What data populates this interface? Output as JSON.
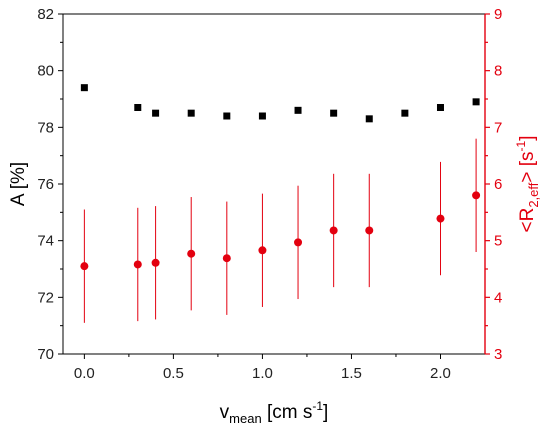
{
  "chart_data": {
    "type": "scatter",
    "title": "",
    "xlabel": {
      "main": "v",
      "sub": "mean",
      "rest": " [cm s",
      "sup": "-1",
      "end": "]"
    },
    "ylabel_left": "A [%]",
    "ylabel_right": {
      "start": "<R",
      "sub": "2,eff",
      "mid": "> [s",
      "sup": "-1",
      "end": "]"
    },
    "xlim": [
      -0.12,
      2.25
    ],
    "ylim_left": [
      70,
      82
    ],
    "ylim_right": [
      3,
      9
    ],
    "x_ticks": [
      0.0,
      0.5,
      1.0,
      1.5,
      2.0
    ],
    "x_tick_labels": [
      "0.0",
      "0.5",
      "1.0",
      "1.5",
      "2.0"
    ],
    "y_left_ticks": [
      70,
      72,
      74,
      76,
      78,
      80,
      82
    ],
    "y_left_tick_labels": [
      "70",
      "72",
      "74",
      "76",
      "78",
      "80",
      "82"
    ],
    "y_right_ticks": [
      3,
      4,
      5,
      6,
      7,
      8,
      9
    ],
    "y_right_tick_labels": [
      "3",
      "4",
      "5",
      "6",
      "7",
      "8",
      "9"
    ],
    "grid": false,
    "series": [
      {
        "axis": "left",
        "marker": "square",
        "color": "#000000",
        "x": [
          0.0,
          0.3,
          0.4,
          0.6,
          0.8,
          1.0,
          1.2,
          1.4,
          1.6,
          1.8,
          2.0,
          2.2
        ],
        "y": [
          79.4,
          78.7,
          78.5,
          78.5,
          78.4,
          78.4,
          78.6,
          78.5,
          78.3,
          78.5,
          78.7,
          78.9
        ]
      },
      {
        "axis": "right",
        "marker": "circle",
        "color": "#e3000f",
        "x": [
          0.0,
          0.3,
          0.4,
          0.6,
          0.8,
          1.0,
          1.2,
          1.4,
          1.6,
          2.0,
          2.2
        ],
        "y": [
          4.55,
          4.58,
          4.61,
          4.77,
          4.69,
          4.83,
          4.97,
          5.18,
          5.18,
          5.39,
          5.8
        ],
        "err": [
          1.0,
          1.0,
          1.0,
          1.0,
          1.0,
          1.0,
          1.0,
          1.0,
          1.0,
          1.0,
          1.0
        ]
      }
    ]
  }
}
